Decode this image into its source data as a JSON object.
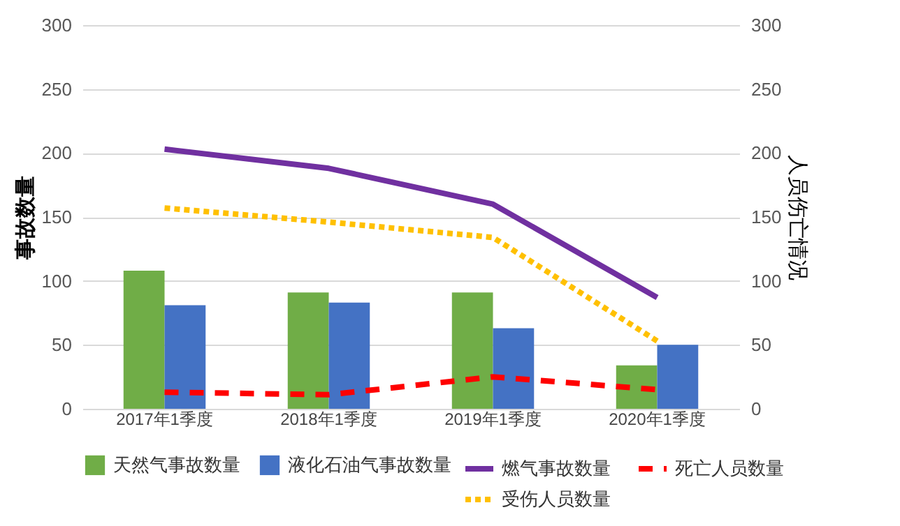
{
  "chart_data": {
    "type": "bar",
    "categories": [
      "2017年1季度",
      "2018年1季度",
      "2019年1季度",
      "2020年1季度"
    ],
    "ylabel": "事故数量",
    "y2label": "人员伤亡情况",
    "ylim": [
      0,
      300
    ],
    "yticks": [
      0,
      50,
      100,
      150,
      200,
      250,
      300
    ],
    "y2lim": [
      0,
      300
    ],
    "y2ticks": [
      0,
      50,
      100,
      150,
      200,
      250,
      300
    ],
    "grid": "y",
    "legend": "bottom",
    "series": [
      {
        "name": "天然气事故数量",
        "color": "#70ad47",
        "values": [
          108,
          91,
          91,
          34
        ]
      },
      {
        "name": "液化石油气事故数量",
        "color": "#4472c4",
        "values": [
          81,
          83,
          63,
          50
        ]
      },
      {
        "name": "燃气事故数量",
        "type": "line",
        "axis": "y2",
        "color": "#7030a0",
        "line_style": "solid",
        "values": [
          203,
          188,
          160,
          87
        ]
      },
      {
        "name": "死亡人员数量",
        "type": "line",
        "axis": "y2",
        "color": "#ff0000",
        "line_style": "dashed",
        "values": [
          13,
          11,
          25,
          15
        ]
      },
      {
        "name": "受伤人员数量",
        "type": "line",
        "axis": "y2",
        "color": "#ffc000",
        "line_style": "dotted",
        "values": [
          157,
          146,
          134,
          53
        ]
      }
    ]
  }
}
